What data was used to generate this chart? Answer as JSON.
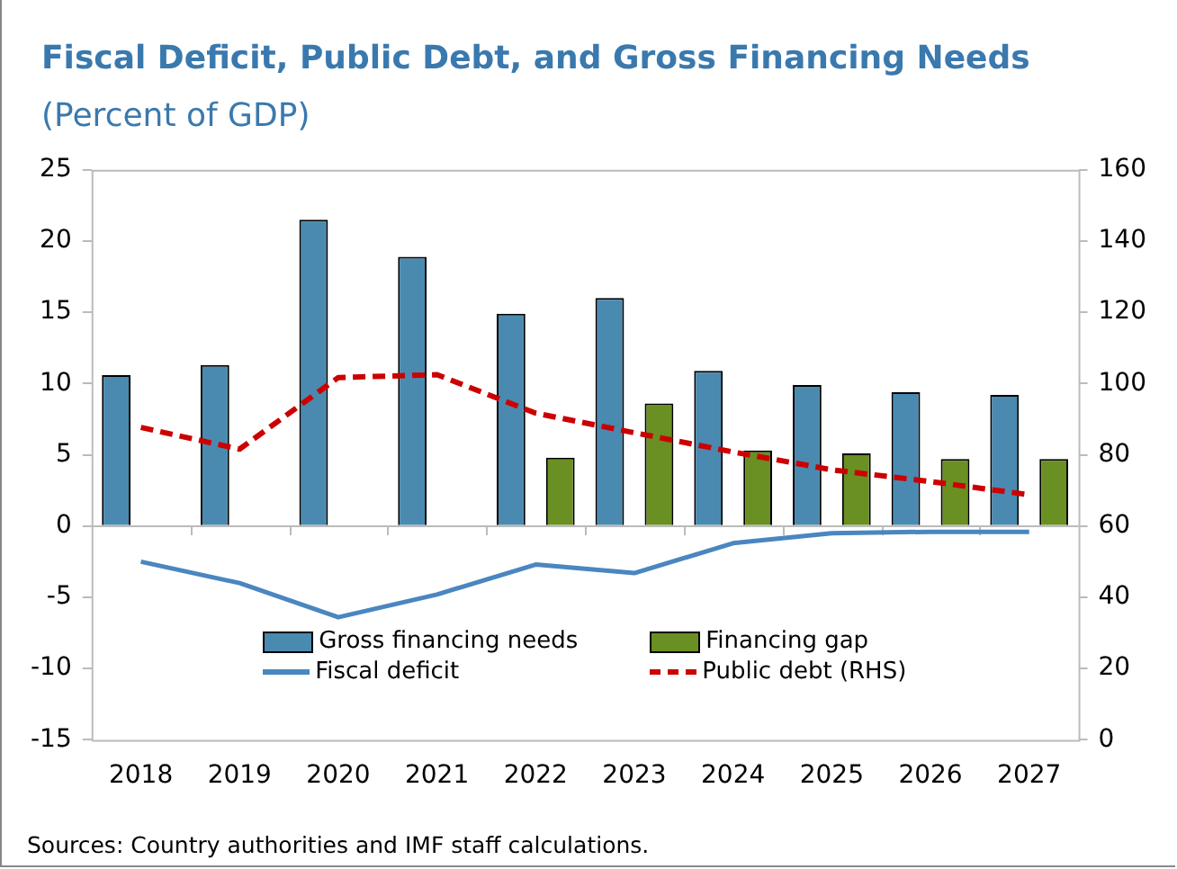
{
  "chart_data": {
    "type": "bar",
    "title": "Fiscal Deficit, Public Debt, and Gross Financing Needs",
    "subtitle": "(Percent of GDP)",
    "categories": [
      "2018",
      "2019",
      "2020",
      "2021",
      "2022",
      "2023",
      "2024",
      "2025",
      "2026",
      "2027"
    ],
    "series": [
      {
        "name": "Gross financing needs",
        "color": "#4a8ab0",
        "values": [
          10.6,
          11.3,
          21.5,
          18.9,
          14.9,
          16.0,
          10.9,
          9.9,
          9.4,
          9.2
        ]
      },
      {
        "name": "Financing gap",
        "color": "#6a8f22",
        "values": [
          null,
          null,
          null,
          null,
          4.8,
          8.6,
          5.3,
          5.1,
          4.7,
          4.7
        ]
      },
      {
        "name": "Fiscal deficit",
        "type": "line",
        "color": "#4a86c0",
        "values": [
          -2.5,
          -4.0,
          -6.4,
          -4.8,
          -2.7,
          -3.3,
          -1.2,
          -0.5,
          -0.4,
          -0.4
        ]
      },
      {
        "name": "Public debt (RHS)",
        "type": "line",
        "axis": "y2",
        "color": "#cc0000",
        "line_style": "dashed",
        "values": [
          87.7,
          81.6,
          101.7,
          102.5,
          91.7,
          86.2,
          80.8,
          75.8,
          72.5,
          68.8
        ]
      }
    ],
    "ylim": [
      -15,
      25
    ],
    "yticks": [
      -15,
      -10,
      -5,
      0,
      5,
      10,
      15,
      20,
      25
    ],
    "y2lim": [
      0,
      160
    ],
    "y2ticks": [
      0,
      20,
      40,
      60,
      80,
      100,
      120,
      140,
      160
    ],
    "grid": false,
    "legend": "bottom",
    "marker": "none",
    "ref_lines": [
      {
        "axis": "y",
        "value": 0
      }
    ],
    "annotations": [
      "Sources: Country authorities and IMF staff calculations."
    ]
  }
}
